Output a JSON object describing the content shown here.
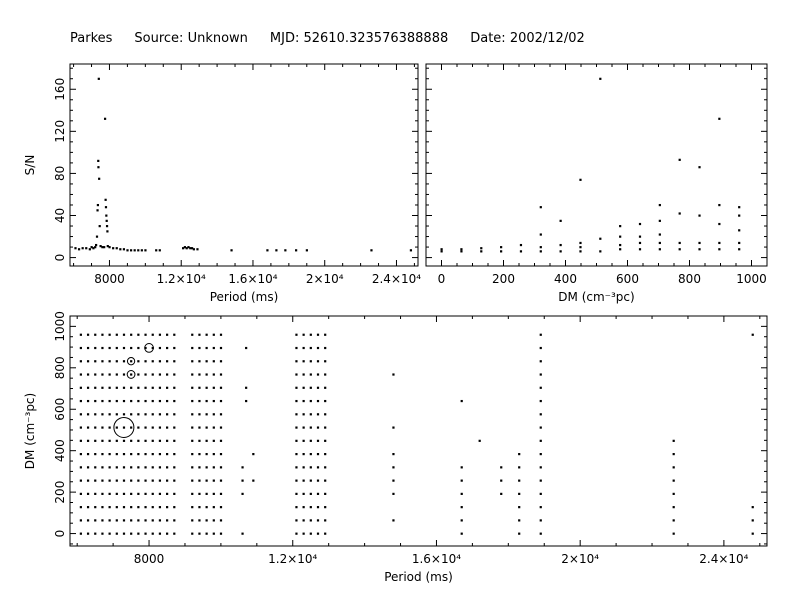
{
  "header": {
    "telescope": "Parkes",
    "source": "Source: Unknown",
    "mjd": "MJD: 52610.323576388888",
    "date": "Date: 2002/12/02"
  },
  "chart_data": [
    {
      "type": "scatter",
      "id": "snr-vs-period",
      "xlabel": "Period (ms)",
      "ylabel": "S/N",
      "xlim": [
        5800,
        25200
      ],
      "ylim": [
        -8,
        184
      ],
      "x_ticks": [
        8000,
        12000,
        16000,
        20000,
        24000
      ],
      "x_tick_labels": [
        "8000",
        "1.2×10⁴",
        "1.6×10⁴",
        "2×10⁴",
        "2.4×10⁴"
      ],
      "y_ticks": [
        0,
        40,
        80,
        120,
        160
      ],
      "y_tick_labels": [
        "0",
        "40",
        "80",
        "120",
        "160"
      ],
      "points": [
        [
          6100,
          9
        ],
        [
          6300,
          8
        ],
        [
          6500,
          9
        ],
        [
          6700,
          9
        ],
        [
          6900,
          8
        ],
        [
          7000,
          10
        ],
        [
          7100,
          9
        ],
        [
          7200,
          10
        ],
        [
          7250,
          12
        ],
        [
          7300,
          20
        ],
        [
          7330,
          45
        ],
        [
          7350,
          50
        ],
        [
          7370,
          92
        ],
        [
          7380,
          86
        ],
        [
          7400,
          170
        ],
        [
          7420,
          75
        ],
        [
          7450,
          30
        ],
        [
          7500,
          11
        ],
        [
          7600,
          10
        ],
        [
          7700,
          10
        ],
        [
          7750,
          132
        ],
        [
          7780,
          55
        ],
        [
          7800,
          48
        ],
        [
          7820,
          40
        ],
        [
          7840,
          35
        ],
        [
          7860,
          30
        ],
        [
          7880,
          25
        ],
        [
          7900,
          11
        ],
        [
          8000,
          10
        ],
        [
          8200,
          9
        ],
        [
          8400,
          9
        ],
        [
          8600,
          8
        ],
        [
          8800,
          8
        ],
        [
          9000,
          7
        ],
        [
          9200,
          7
        ],
        [
          9400,
          7
        ],
        [
          9600,
          7
        ],
        [
          9800,
          7
        ],
        [
          10000,
          7
        ],
        [
          10600,
          7
        ],
        [
          10800,
          7
        ],
        [
          12100,
          9
        ],
        [
          12200,
          10
        ],
        [
          12300,
          9
        ],
        [
          12400,
          10
        ],
        [
          12500,
          9
        ],
        [
          12600,
          9
        ],
        [
          12700,
          8
        ],
        [
          12900,
          8
        ],
        [
          14800,
          7
        ],
        [
          16800,
          7
        ],
        [
          17300,
          7
        ],
        [
          17800,
          7
        ],
        [
          18400,
          7
        ],
        [
          19000,
          7
        ],
        [
          22600,
          7
        ],
        [
          24800,
          7
        ]
      ]
    },
    {
      "type": "scatter",
      "id": "snr-vs-dm",
      "xlabel": "DM (cm⁻³pc)",
      "ylabel": "",
      "xlim": [
        -50,
        1050
      ],
      "ylim": [
        -8,
        184
      ],
      "x_ticks": [
        0,
        200,
        400,
        600,
        800,
        1000
      ],
      "x_tick_labels": [
        "0",
        "200",
        "400",
        "600",
        "800",
        "1000"
      ],
      "y_ticks": [
        0,
        40,
        80,
        120,
        160
      ],
      "points": [
        [
          0,
          6
        ],
        [
          0,
          8
        ],
        [
          64,
          6
        ],
        [
          64,
          8
        ],
        [
          128,
          6
        ],
        [
          128,
          9
        ],
        [
          192,
          6
        ],
        [
          192,
          10
        ],
        [
          256,
          6
        ],
        [
          256,
          12
        ],
        [
          320,
          6
        ],
        [
          320,
          10
        ],
        [
          320,
          22
        ],
        [
          320,
          48
        ],
        [
          384,
          6
        ],
        [
          384,
          12
        ],
        [
          384,
          35
        ],
        [
          448,
          6
        ],
        [
          448,
          10
        ],
        [
          448,
          14
        ],
        [
          448,
          74
        ],
        [
          512,
          6
        ],
        [
          512,
          18
        ],
        [
          512,
          170
        ],
        [
          576,
          8
        ],
        [
          576,
          12
        ],
        [
          576,
          20
        ],
        [
          576,
          30
        ],
        [
          640,
          8
        ],
        [
          640,
          14
        ],
        [
          640,
          20
        ],
        [
          640,
          32
        ],
        [
          704,
          8
        ],
        [
          704,
          14
        ],
        [
          704,
          22
        ],
        [
          704,
          35
        ],
        [
          704,
          50
        ],
        [
          768,
          8
        ],
        [
          768,
          14
        ],
        [
          768,
          42
        ],
        [
          768,
          93
        ],
        [
          832,
          8
        ],
        [
          832,
          14
        ],
        [
          832,
          40
        ],
        [
          832,
          86
        ],
        [
          896,
          8
        ],
        [
          896,
          14
        ],
        [
          896,
          32
        ],
        [
          896,
          50
        ],
        [
          896,
          132
        ],
        [
          960,
          8
        ],
        [
          960,
          14
        ],
        [
          960,
          26
        ],
        [
          960,
          40
        ],
        [
          960,
          48
        ]
      ]
    },
    {
      "type": "scatter",
      "id": "dm-vs-period",
      "xlabel": "Period (ms)",
      "ylabel": "DM (cm⁻³pc)",
      "xlim": [
        5800,
        25200
      ],
      "ylim": [
        -60,
        1050
      ],
      "x_ticks": [
        8000,
        12000,
        16000,
        20000,
        24000
      ],
      "x_tick_labels": [
        "8000",
        "1.2×10⁴",
        "1.6×10⁴",
        "2×10⁴",
        "2.4×10⁴"
      ],
      "y_ticks": [
        0,
        200,
        400,
        600,
        800,
        1000
      ],
      "y_tick_labels": [
        "0",
        "200",
        "400",
        "600",
        "800",
        "1000"
      ],
      "dm_grid": [
        0,
        64,
        128,
        192,
        256,
        320,
        384,
        448,
        512,
        576,
        640,
        704,
        768,
        832,
        896,
        960
      ],
      "dense_period_columns": [
        6100,
        6300,
        6500,
        6700,
        6900,
        7100,
        7300,
        7500,
        7700,
        7900,
        8100,
        8300,
        8500,
        8700,
        9200,
        9400,
        9600,
        9800,
        10000,
        12100,
        12300,
        12500,
        12700,
        12900
      ],
      "sparse_points": [
        [
          10600,
          0
        ],
        [
          10600,
          192
        ],
        [
          10600,
          256
        ],
        [
          10600,
          320
        ],
        [
          10700,
          640
        ],
        [
          10700,
          704
        ],
        [
          10700,
          896
        ],
        [
          10900,
          256
        ],
        [
          10900,
          384
        ],
        [
          14800,
          64
        ],
        [
          14800,
          192
        ],
        [
          14800,
          256
        ],
        [
          14800,
          320
        ],
        [
          14800,
          384
        ],
        [
          14800,
          512
        ],
        [
          14800,
          768
        ],
        [
          16700,
          0
        ],
        [
          16700,
          64
        ],
        [
          16700,
          128
        ],
        [
          16700,
          192
        ],
        [
          16700,
          256
        ],
        [
          16700,
          320
        ],
        [
          16700,
          640
        ],
        [
          17200,
          448
        ],
        [
          17800,
          192
        ],
        [
          17800,
          256
        ],
        [
          17800,
          320
        ],
        [
          18300,
          0
        ],
        [
          18300,
          64
        ],
        [
          18300,
          128
        ],
        [
          18300,
          192
        ],
        [
          18300,
          256
        ],
        [
          18300,
          320
        ],
        [
          18300,
          384
        ],
        [
          18900,
          0
        ],
        [
          18900,
          64
        ],
        [
          18900,
          128
        ],
        [
          18900,
          192
        ],
        [
          18900,
          256
        ],
        [
          18900,
          320
        ],
        [
          18900,
          384
        ],
        [
          18900,
          448
        ],
        [
          18900,
          512
        ],
        [
          18900,
          576
        ],
        [
          18900,
          640
        ],
        [
          18900,
          704
        ],
        [
          18900,
          768
        ],
        [
          18900,
          832
        ],
        [
          18900,
          896
        ],
        [
          18900,
          960
        ],
        [
          22600,
          0
        ],
        [
          22600,
          64
        ],
        [
          22600,
          128
        ],
        [
          22600,
          192
        ],
        [
          22600,
          256
        ],
        [
          22600,
          320
        ],
        [
          22600,
          384
        ],
        [
          22600,
          448
        ],
        [
          24800,
          0
        ],
        [
          24800,
          64
        ],
        [
          24800,
          128
        ],
        [
          24800,
          960
        ]
      ],
      "circles": [
        {
          "period": 7300,
          "dm": 512,
          "snr": 170
        },
        {
          "period": 8000,
          "dm": 896,
          "snr": 50
        },
        {
          "period": 7500,
          "dm": 768,
          "snr": 40
        },
        {
          "period": 7500,
          "dm": 832,
          "snr": 35
        }
      ]
    }
  ]
}
